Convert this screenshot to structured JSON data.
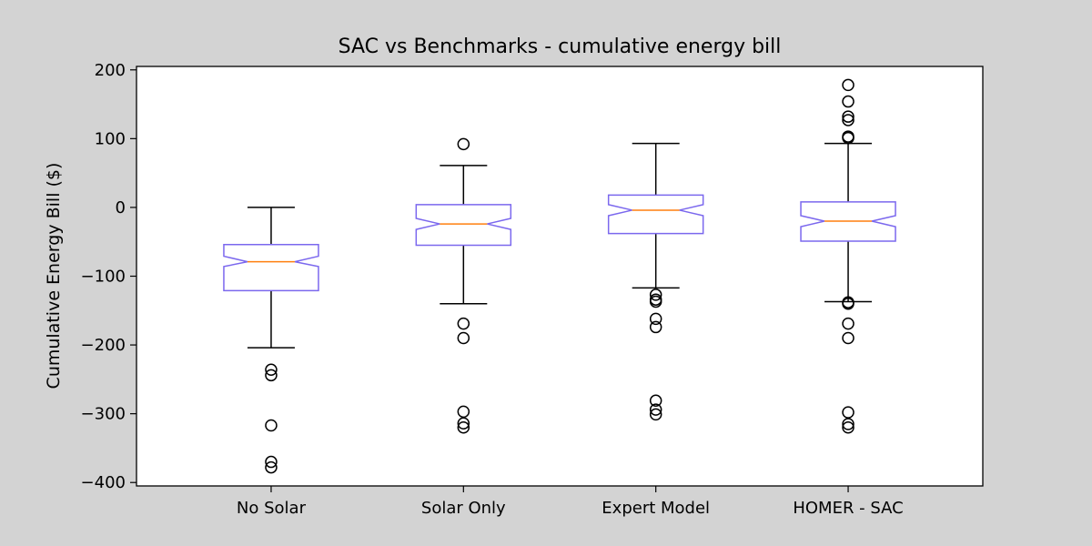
{
  "chart_data": {
    "type": "boxplot",
    "title": "SAC vs Benchmarks - cumulative energy bill",
    "xlabel": "",
    "ylabel": "Cumulative Energy Bill ($)",
    "ylim": [
      -405,
      205
    ],
    "yticks": [
      200,
      100,
      0,
      -100,
      -200,
      -300,
      -400
    ],
    "ytick_labels": [
      "200",
      "100",
      "0",
      "−100",
      "−200",
      "−300",
      "−400"
    ],
    "categories": [
      "No Solar",
      "Solar Only",
      "Expert Model",
      "HOMER - SAC"
    ],
    "notched": true,
    "box_color": "#7b68ee",
    "median_color": "#ff7f0e",
    "whisker_color": "#000000",
    "boxes": [
      {
        "label": "No Solar",
        "whisker_low": -204,
        "q1": -121,
        "median": -79,
        "q3": -54,
        "whisker_high": 0,
        "notch_low": -86,
        "notch_high": -71,
        "outliers": [
          -236,
          -244,
          -317,
          -370,
          -378
        ]
      },
      {
        "label": "Solar Only",
        "whisker_low": -140,
        "q1": -55,
        "median": -24,
        "q3": 4,
        "whisker_high": 61,
        "notch_low": -32,
        "notch_high": -16,
        "outliers": [
          92,
          -169,
          -190,
          -297,
          -314,
          -320
        ]
      },
      {
        "label": "Expert Model",
        "whisker_low": -117,
        "q1": -38,
        "median": -4,
        "q3": 18,
        "whisker_high": 93,
        "notch_low": -12,
        "notch_high": 4,
        "outliers": [
          -127,
          -134,
          -137,
          -162,
          -174,
          -281,
          -294,
          -301
        ]
      },
      {
        "label": "HOMER - SAC",
        "whisker_low": -137,
        "q1": -49,
        "median": -20,
        "q3": 8,
        "whisker_high": 93,
        "notch_low": -28,
        "notch_high": -12,
        "outliers": [
          178,
          154,
          132,
          127,
          103,
          101,
          -138,
          -140,
          -169,
          -190,
          -298,
          -315,
          -320
        ]
      }
    ]
  }
}
